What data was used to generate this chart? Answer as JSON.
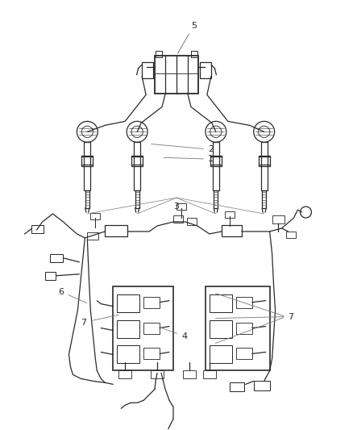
{
  "bg_color": "#ffffff",
  "line_color": "#2a2a2a",
  "label_color": "#777777",
  "fig_width": 4.38,
  "fig_height": 5.33,
  "dpi": 100
}
